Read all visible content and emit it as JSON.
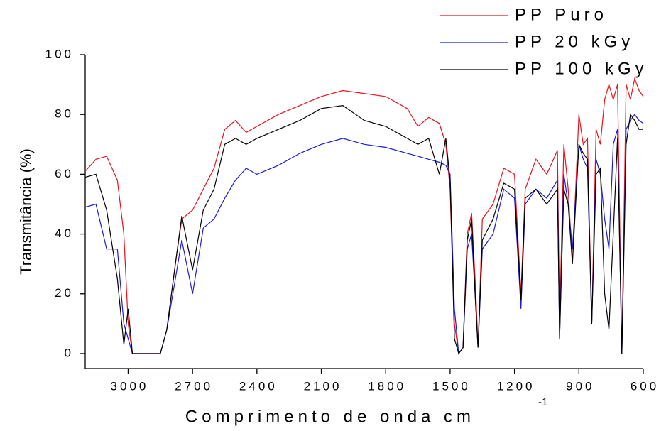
{
  "chart_data": {
    "type": "line",
    "xlabel": "Comprimento de onda cm",
    "xlabel_sup": "-1",
    "ylabel": "Transmitância (%)",
    "xlim": [
      3200,
      600
    ],
    "ylim": [
      -5,
      100
    ],
    "xticks": [
      3000,
      2700,
      2400,
      2100,
      1800,
      1500,
      1200,
      900,
      600
    ],
    "yticks": [
      0,
      20,
      40,
      60,
      80,
      100
    ],
    "legend": "top-right",
    "x": [
      3200,
      3150,
      3100,
      3050,
      3020,
      3000,
      2980,
      2850,
      2820,
      2780,
      2750,
      2700,
      2650,
      2600,
      2550,
      2500,
      2450,
      2400,
      2300,
      2200,
      2100,
      2000,
      1900,
      1800,
      1700,
      1650,
      1600,
      1550,
      1520,
      1500,
      1480,
      1460,
      1440,
      1420,
      1400,
      1380,
      1370,
      1350,
      1300,
      1250,
      1200,
      1170,
      1150,
      1100,
      1050,
      1000,
      990,
      970,
      950,
      930,
      900,
      880,
      860,
      840,
      820,
      800,
      780,
      760,
      740,
      720,
      700,
      680,
      660,
      640,
      620,
      600
    ],
    "series": [
      {
        "name": "PP Puro",
        "color": "#e8111b",
        "values": [
          61,
          65,
          66,
          58,
          40,
          10,
          0,
          0,
          8,
          30,
          45,
          48,
          55,
          62,
          75,
          78,
          74,
          76,
          80,
          83,
          86,
          88,
          87,
          86,
          82,
          76,
          79,
          77,
          70,
          55,
          10,
          0,
          2,
          40,
          47,
          20,
          2,
          45,
          50,
          62,
          60,
          20,
          55,
          65,
          60,
          68,
          10,
          70,
          55,
          30,
          80,
          70,
          72,
          10,
          75,
          70,
          85,
          90,
          85,
          90,
          0,
          90,
          85,
          92,
          88,
          86
        ]
      },
      {
        "name": "PP 20 kGy",
        "color": "#1a1ae0",
        "values": [
          49,
          50,
          35,
          35,
          10,
          5,
          0,
          0,
          8,
          25,
          38,
          20,
          42,
          45,
          52,
          58,
          62,
          60,
          63,
          67,
          70,
          72,
          70,
          69,
          67,
          66,
          65,
          64,
          63,
          60,
          15,
          0,
          2,
          35,
          40,
          15,
          2,
          35,
          40,
          55,
          52,
          15,
          50,
          55,
          52,
          58,
          5,
          60,
          50,
          35,
          70,
          65,
          62,
          10,
          65,
          60,
          45,
          35,
          70,
          75,
          0,
          75,
          78,
          80,
          78,
          77
        ]
      },
      {
        "name": "PP 100 kGy",
        "color": "#000000",
        "values": [
          59,
          60,
          48,
          25,
          3,
          15,
          0,
          0,
          8,
          30,
          46,
          28,
          48,
          55,
          70,
          72,
          70,
          72,
          75,
          78,
          82,
          83,
          78,
          76,
          72,
          70,
          72,
          60,
          72,
          58,
          5,
          0,
          2,
          38,
          45,
          15,
          2,
          38,
          45,
          57,
          55,
          18,
          52,
          55,
          50,
          55,
          5,
          55,
          50,
          30,
          70,
          67,
          65,
          10,
          60,
          62,
          20,
          8,
          40,
          72,
          0,
          70,
          80,
          78,
          75,
          75
        ]
      }
    ]
  }
}
